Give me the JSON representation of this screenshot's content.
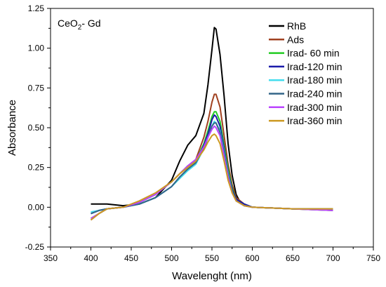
{
  "chart_data": {
    "type": "line",
    "title_main": "CeO",
    "title_sub": "2",
    "title_tail": "- Gd",
    "xlabel": "Wavelenght  (nm)",
    "ylabel": "Absorbance",
    "xlim": [
      350,
      750
    ],
    "ylim": [
      -0.25,
      1.25
    ],
    "xticks": [
      "350",
      "400",
      "450",
      "500",
      "550",
      "600",
      "650",
      "700",
      "750"
    ],
    "yticks": [
      "-0.25",
      "0.00",
      "0.25",
      "0.50",
      "0.75",
      "1.00",
      "1.25"
    ],
    "legend_position": "top-right",
    "series": [
      {
        "name": "RhB",
        "color": "#000000",
        "x": [
          400,
          420,
          440,
          460,
          480,
          500,
          510,
          520,
          530,
          540,
          545,
          550,
          553,
          555,
          560,
          565,
          570,
          575,
          580,
          585,
          590,
          600,
          650,
          700
        ],
        "y": [
          0.02,
          0.02,
          0.01,
          0.02,
          0.06,
          0.17,
          0.29,
          0.39,
          0.45,
          0.59,
          0.77,
          0.99,
          1.13,
          1.12,
          0.96,
          0.7,
          0.4,
          0.2,
          0.08,
          0.03,
          0.01,
          0.0,
          -0.01,
          -0.01
        ]
      },
      {
        "name": "Ads",
        "color": "#a0401f",
        "x": [
          400,
          410,
          420,
          440,
          460,
          480,
          500,
          510,
          520,
          530,
          540,
          545,
          550,
          553,
          555,
          560,
          565,
          570,
          575,
          580,
          590,
          600,
          650,
          700
        ],
        "y": [
          -0.08,
          -0.04,
          -0.01,
          0.0,
          0.03,
          0.08,
          0.16,
          0.21,
          0.26,
          0.3,
          0.44,
          0.54,
          0.66,
          0.71,
          0.71,
          0.63,
          0.45,
          0.27,
          0.14,
          0.06,
          0.02,
          0.0,
          -0.01,
          -0.02
        ]
      },
      {
        "name": "Irad- 60 min",
        "color": "#22cc22",
        "x": [
          400,
          410,
          420,
          440,
          460,
          480,
          500,
          510,
          520,
          530,
          540,
          545,
          550,
          553,
          555,
          560,
          565,
          570,
          575,
          580,
          590,
          600,
          650,
          700
        ],
        "y": [
          -0.07,
          -0.04,
          -0.01,
          0.0,
          0.03,
          0.08,
          0.16,
          0.21,
          0.26,
          0.29,
          0.4,
          0.48,
          0.57,
          0.6,
          0.6,
          0.54,
          0.39,
          0.24,
          0.12,
          0.05,
          0.02,
          0.0,
          -0.01,
          -0.02
        ]
      },
      {
        "name": "Irad-120 min",
        "color": "#1a1aaa",
        "x": [
          400,
          410,
          420,
          440,
          460,
          480,
          500,
          510,
          520,
          530,
          540,
          545,
          550,
          553,
          555,
          560,
          565,
          570,
          575,
          580,
          590,
          600,
          650,
          700
        ],
        "y": [
          -0.04,
          -0.02,
          -0.01,
          0.0,
          0.02,
          0.06,
          0.13,
          0.19,
          0.24,
          0.28,
          0.39,
          0.46,
          0.55,
          0.58,
          0.57,
          0.51,
          0.37,
          0.22,
          0.11,
          0.05,
          0.02,
          0.0,
          -0.01,
          -0.01
        ]
      },
      {
        "name": "Irad-180 min",
        "color": "#44ddee",
        "x": [
          400,
          410,
          420,
          440,
          460,
          480,
          500,
          510,
          520,
          530,
          540,
          545,
          550,
          553,
          555,
          560,
          565,
          570,
          575,
          580,
          590,
          600,
          650,
          700
        ],
        "y": [
          -0.03,
          -0.02,
          -0.01,
          0.0,
          0.02,
          0.06,
          0.13,
          0.18,
          0.23,
          0.27,
          0.37,
          0.44,
          0.51,
          0.54,
          0.53,
          0.48,
          0.35,
          0.21,
          0.1,
          0.04,
          0.01,
          0.0,
          -0.01,
          -0.01
        ]
      },
      {
        "name": "Irad-240 min",
        "color": "#336688",
        "x": [
          400,
          410,
          420,
          440,
          460,
          480,
          500,
          510,
          520,
          530,
          540,
          545,
          550,
          553,
          555,
          560,
          565,
          570,
          575,
          580,
          590,
          600,
          650,
          700
        ],
        "y": [
          -0.04,
          -0.02,
          -0.01,
          0.0,
          0.02,
          0.06,
          0.13,
          0.19,
          0.24,
          0.28,
          0.37,
          0.44,
          0.51,
          0.53,
          0.53,
          0.47,
          0.34,
          0.2,
          0.1,
          0.04,
          0.01,
          0.0,
          -0.01,
          -0.01
        ]
      },
      {
        "name": "Irad-300 min",
        "color": "#bb44ff",
        "x": [
          400,
          410,
          420,
          440,
          460,
          480,
          500,
          510,
          520,
          530,
          540,
          545,
          550,
          553,
          555,
          560,
          565,
          570,
          575,
          580,
          590,
          600,
          650,
          700
        ],
        "y": [
          -0.07,
          -0.04,
          -0.01,
          0.0,
          0.03,
          0.08,
          0.16,
          0.21,
          0.26,
          0.3,
          0.38,
          0.44,
          0.49,
          0.51,
          0.5,
          0.45,
          0.32,
          0.19,
          0.09,
          0.04,
          0.01,
          0.0,
          -0.01,
          -0.02
        ]
      },
      {
        "name": "Irad-360 min",
        "color": "#cc9922",
        "x": [
          400,
          410,
          420,
          440,
          460,
          480,
          500,
          510,
          520,
          530,
          540,
          545,
          550,
          553,
          555,
          560,
          565,
          570,
          575,
          580,
          590,
          600,
          650,
          700
        ],
        "y": [
          -0.08,
          -0.04,
          -0.01,
          0.0,
          0.04,
          0.09,
          0.16,
          0.21,
          0.25,
          0.29,
          0.36,
          0.41,
          0.45,
          0.46,
          0.45,
          0.4,
          0.29,
          0.17,
          0.09,
          0.04,
          0.01,
          0.0,
          -0.01,
          -0.01
        ]
      }
    ]
  }
}
